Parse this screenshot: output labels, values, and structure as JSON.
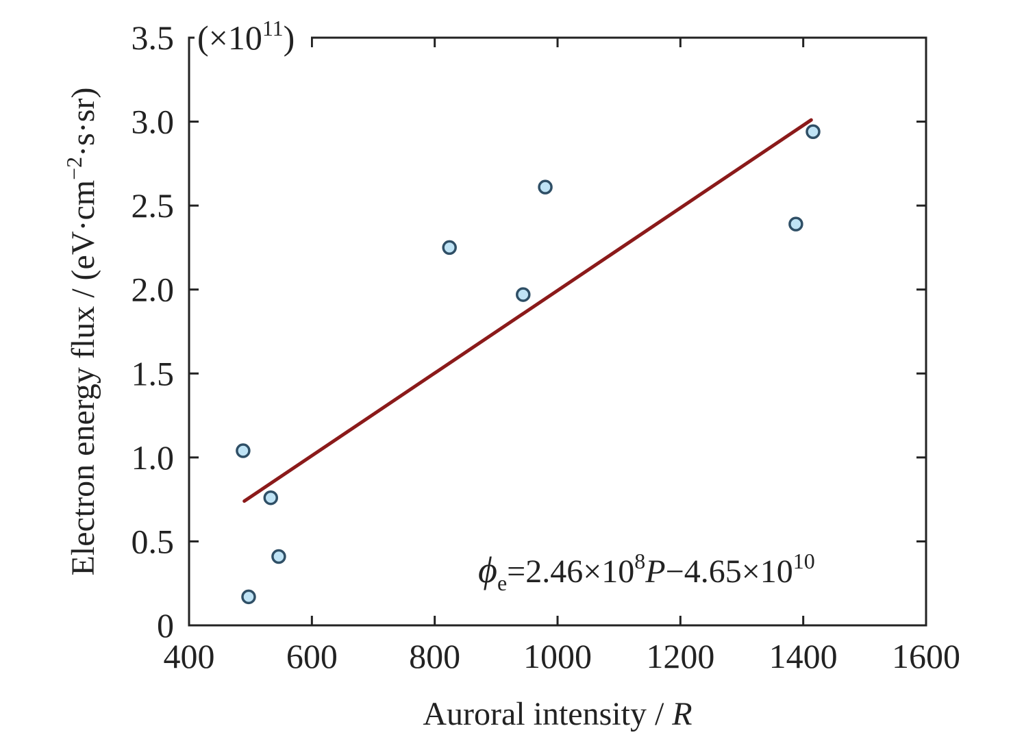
{
  "chart_data": {
    "type": "scatter",
    "title": "",
    "xlabel_prefix": "Auroral intensity / ",
    "xlabel_unit": "R",
    "ylabel_prefix": "Electron energy flux / (eV·cm",
    "ylabel_sup": "−2",
    "ylabel_suffix": "·s·sr)",
    "y_multiplier_base": "(×10",
    "y_multiplier_exp": "11",
    "y_multiplier_close": ")",
    "xlim": [
      400,
      1600
    ],
    "ylim": [
      0,
      3.5
    ],
    "xticks": [
      400,
      600,
      800,
      1000,
      1200,
      1400,
      1600
    ],
    "yticks": [
      0,
      0.5,
      1.0,
      1.5,
      2.0,
      2.5,
      3.0,
      3.5
    ],
    "ytick_labels": [
      "0",
      "0.5",
      "1.0",
      "1.5",
      "2.0",
      "2.5",
      "3.0",
      "3.5"
    ],
    "grid": false,
    "points": [
      {
        "x": 488,
        "y": 1.04
      },
      {
        "x": 497,
        "y": 0.17
      },
      {
        "x": 533,
        "y": 0.76
      },
      {
        "x": 546,
        "y": 0.41
      },
      {
        "x": 824,
        "y": 2.25
      },
      {
        "x": 944,
        "y": 1.97
      },
      {
        "x": 980,
        "y": 2.61
      },
      {
        "x": 1388,
        "y": 2.39
      },
      {
        "x": 1416,
        "y": 2.94
      }
    ],
    "fit_line": {
      "x": [
        490,
        1413
      ],
      "y": [
        0.74,
        3.01
      ]
    },
    "equation": {
      "phi": "ϕ",
      "phi_sub": "e",
      "part1": "=2.46×10",
      "exp1": "8",
      "var": "P",
      "part2": "−4.65×10",
      "exp2": "10"
    },
    "colors": {
      "point_stroke": "#2f4f66",
      "point_fill": "#bfe3f5",
      "fit_line": "#8b1a1a",
      "axis": "#222222"
    }
  }
}
